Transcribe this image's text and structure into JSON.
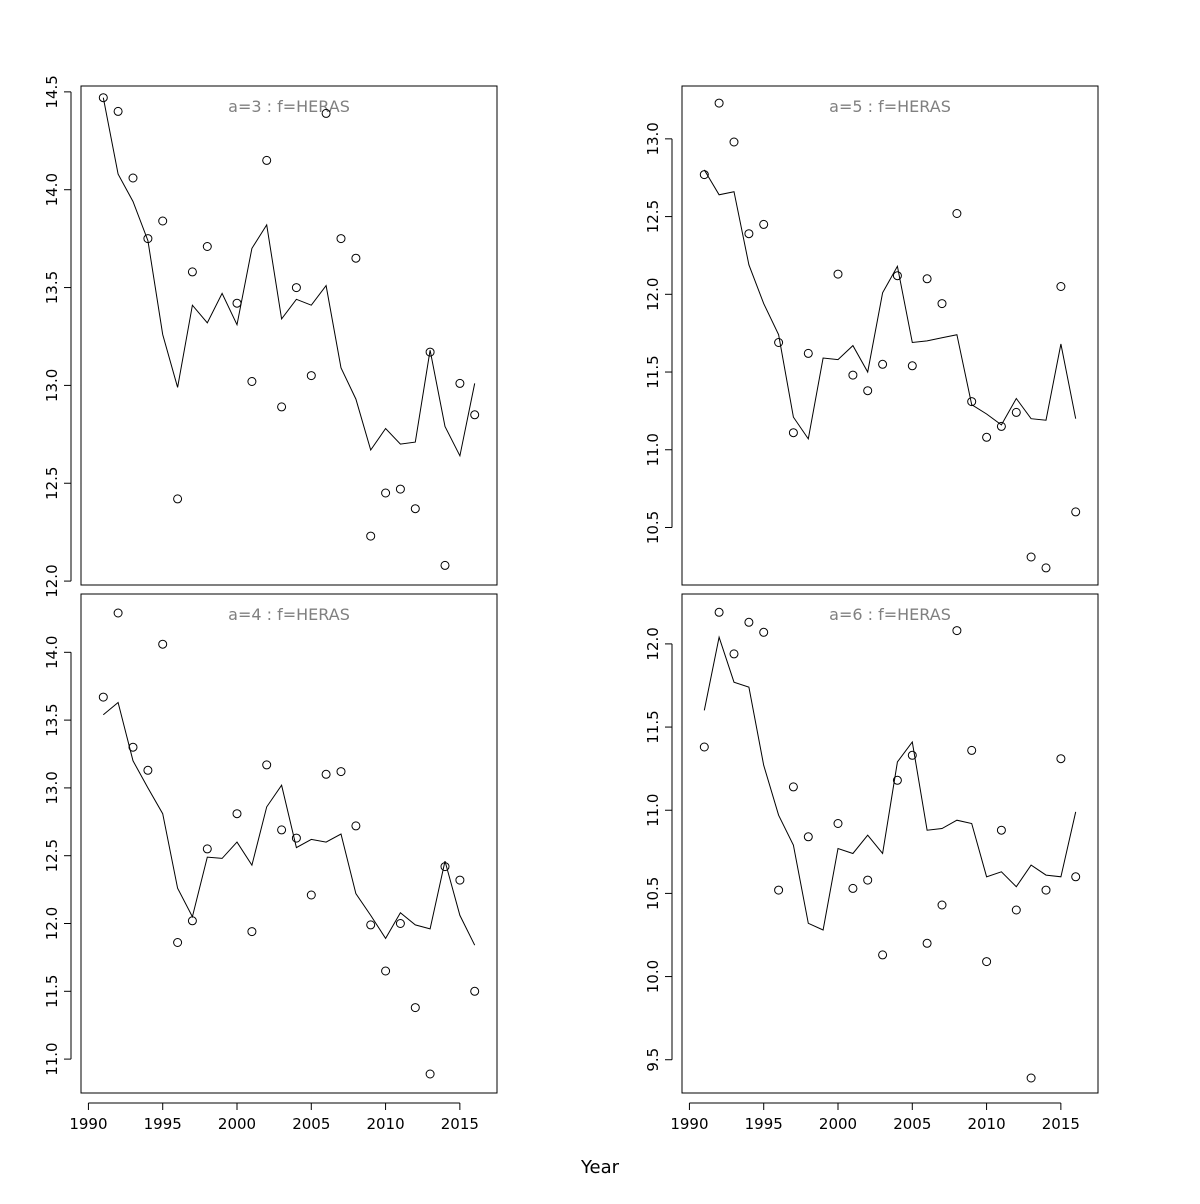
{
  "xlabel": "Year",
  "chart_data": [
    {
      "type": "scatter",
      "title": "a=3  :  f=HERAS",
      "x": [
        1991,
        1992,
        1993,
        1994,
        1995,
        1996,
        1997,
        1998,
        1999,
        2000,
        2001,
        2002,
        2003,
        2004,
        2005,
        2006,
        2007,
        2008,
        2009,
        2010,
        2011,
        2012,
        2013,
        2014,
        2015,
        2016
      ],
      "series": [
        {
          "mark": "points",
          "values": [
            14.47,
            14.4,
            14.06,
            13.75,
            13.84,
            12.42,
            13.58,
            13.71,
            null,
            13.42,
            13.02,
            14.15,
            12.89,
            13.5,
            13.05,
            14.39,
            13.75,
            13.65,
            12.23,
            12.45,
            12.47,
            12.37,
            13.17,
            12.08,
            13.01,
            12.85
          ]
        },
        {
          "mark": "line",
          "values": [
            14.47,
            14.08,
            13.94,
            13.74,
            13.26,
            12.99,
            13.41,
            13.32,
            13.47,
            13.31,
            13.7,
            13.82,
            13.34,
            13.44,
            13.41,
            13.51,
            13.09,
            12.93,
            12.67,
            12.78,
            12.7,
            12.71,
            13.18,
            12.79,
            12.64,
            13.01
          ]
        }
      ],
      "xlim": [
        1989.5,
        2017.5
      ],
      "ylim": [
        11.98,
        14.53
      ],
      "yticks": [
        "12.0",
        "12.5",
        "13.0",
        "13.5",
        "14.0",
        "14.5"
      ],
      "xticks": [],
      "grid": false
    },
    {
      "type": "scatter",
      "title": "a=5  :  f=HERAS",
      "x": [
        1991,
        1992,
        1993,
        1994,
        1995,
        1996,
        1997,
        1998,
        1999,
        2000,
        2001,
        2002,
        2003,
        2004,
        2005,
        2006,
        2007,
        2008,
        2009,
        2010,
        2011,
        2012,
        2013,
        2014,
        2015,
        2016
      ],
      "series": [
        {
          "mark": "points",
          "values": [
            12.77,
            13.23,
            12.98,
            12.39,
            12.45,
            11.69,
            11.11,
            11.62,
            null,
            12.13,
            11.48,
            11.38,
            11.55,
            12.12,
            11.54,
            12.1,
            11.94,
            12.52,
            11.31,
            11.08,
            11.15,
            11.24,
            10.31,
            10.24,
            12.05,
            10.6
          ]
        },
        {
          "mark": "line",
          "values": [
            12.8,
            12.64,
            12.66,
            12.19,
            11.94,
            11.74,
            11.21,
            11.07,
            11.59,
            11.58,
            11.67,
            11.5,
            12.01,
            12.18,
            11.69,
            11.7,
            11.72,
            11.74,
            11.29,
            11.23,
            11.16,
            11.33,
            11.2,
            11.19,
            11.68,
            11.2
          ]
        }
      ],
      "xlim": [
        1989.5,
        2017.5
      ],
      "ylim": [
        10.13,
        13.34
      ],
      "yticks": [
        "10.5",
        "11.0",
        "11.5",
        "12.0",
        "12.5",
        "13.0"
      ],
      "xticks": [],
      "grid": false
    },
    {
      "type": "scatter",
      "title": "a=4  :  f=HERAS",
      "x": [
        1991,
        1992,
        1993,
        1994,
        1995,
        1996,
        1997,
        1998,
        1999,
        2000,
        2001,
        2002,
        2003,
        2004,
        2005,
        2006,
        2007,
        2008,
        2009,
        2010,
        2011,
        2012,
        2013,
        2014,
        2015,
        2016
      ],
      "series": [
        {
          "mark": "points",
          "values": [
            13.67,
            14.29,
            13.3,
            13.13,
            14.06,
            11.86,
            12.02,
            12.55,
            null,
            12.81,
            11.94,
            13.17,
            12.69,
            12.63,
            12.21,
            13.1,
            13.12,
            12.72,
            11.99,
            11.65,
            12.0,
            11.38,
            10.89,
            12.42,
            12.32,
            11.5
          ]
        },
        {
          "mark": "line",
          "values": [
            13.54,
            13.63,
            13.2,
            13.0,
            12.81,
            12.26,
            12.05,
            12.49,
            12.48,
            12.6,
            12.43,
            12.86,
            13.02,
            12.56,
            12.62,
            12.6,
            12.66,
            12.22,
            12.06,
            11.89,
            12.08,
            11.99,
            11.96,
            12.46,
            12.06,
            11.84
          ]
        }
      ],
      "xlim": [
        1989.5,
        2017.5
      ],
      "ylim": [
        10.75,
        14.43
      ],
      "yticks": [
        "11.0",
        "11.5",
        "12.0",
        "12.5",
        "13.0",
        "13.5",
        "14.0"
      ],
      "xticks": [
        "1990",
        "1995",
        "2000",
        "2005",
        "2010",
        "2015"
      ],
      "grid": false
    },
    {
      "type": "scatter",
      "title": "a=6  :  f=HERAS",
      "x": [
        1991,
        1992,
        1993,
        1994,
        1995,
        1996,
        1997,
        1998,
        1999,
        2000,
        2001,
        2002,
        2003,
        2004,
        2005,
        2006,
        2007,
        2008,
        2009,
        2010,
        2011,
        2012,
        2013,
        2014,
        2015,
        2016
      ],
      "series": [
        {
          "mark": "points",
          "values": [
            11.38,
            12.19,
            11.94,
            12.13,
            12.07,
            10.52,
            11.14,
            10.84,
            null,
            10.92,
            10.53,
            10.58,
            10.13,
            11.18,
            11.33,
            10.2,
            10.43,
            12.08,
            11.36,
            10.09,
            10.88,
            10.4,
            9.39,
            10.52,
            11.31,
            10.6
          ]
        },
        {
          "mark": "line",
          "values": [
            11.6,
            12.04,
            11.77,
            11.74,
            11.27,
            10.97,
            10.79,
            10.32,
            10.28,
            10.77,
            10.74,
            10.85,
            10.74,
            11.29,
            11.41,
            10.88,
            10.89,
            10.94,
            10.92,
            10.6,
            10.63,
            10.54,
            10.67,
            10.61,
            10.6,
            10.99
          ]
        }
      ],
      "xlim": [
        1989.5,
        2017.5
      ],
      "ylim": [
        9.3,
        12.3
      ],
      "yticks": [
        "9.5",
        "10.0",
        "10.5",
        "11.0",
        "11.5",
        "12.0"
      ],
      "xticks": [
        "1990",
        "1995",
        "2000",
        "2005",
        "2010",
        "2015"
      ],
      "grid": false
    }
  ]
}
